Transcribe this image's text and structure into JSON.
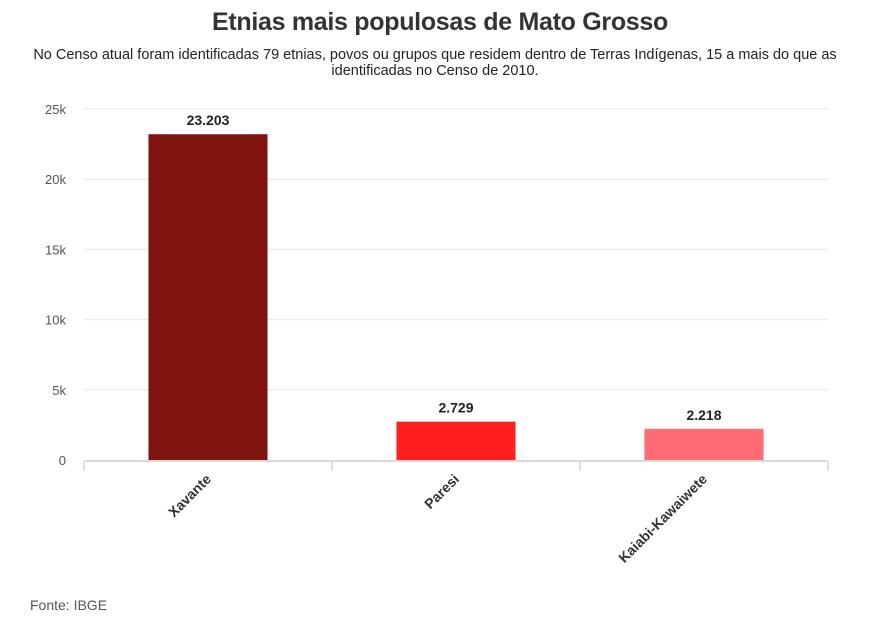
{
  "chart_data": {
    "type": "bar",
    "title": "Etnias mais populosas de Mato Grosso",
    "subtitle": "No Censo atual foram identificadas 79 etnias, povos ou grupos que residem dentro de Terras Indígenas, 15 a mais do que as identificadas no Censo de 2010.",
    "categories": [
      "Xavante",
      "Paresi",
      "Kaiabi-Kawaiwete"
    ],
    "values": [
      23203,
      2729,
      2218
    ],
    "value_labels": [
      "23.203",
      "2.729",
      "2.218"
    ],
    "colors": [
      "#7f140e",
      "#ff1e1e",
      "#ff6b72"
    ],
    "ylim": [
      0,
      25000
    ],
    "yticks": [
      0,
      5000,
      10000,
      15000,
      20000,
      25000
    ],
    "ytick_labels": [
      "0",
      "5k",
      "10k",
      "15k",
      "20k",
      "25k"
    ],
    "xlabel": "",
    "ylabel": "",
    "grid": true,
    "legend": "none"
  },
  "footer": {
    "source": "Fonte: IBGE"
  }
}
